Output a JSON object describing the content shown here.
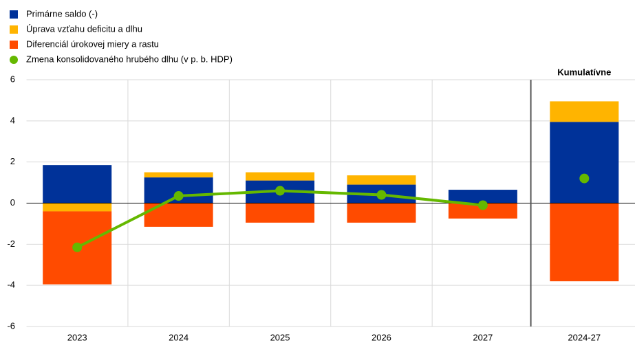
{
  "chart_data": {
    "type": "stacked_bar_line",
    "categories": [
      "2023",
      "2024",
      "2025",
      "2026",
      "2027",
      "2024-27"
    ],
    "annotation": "Kumulatívne",
    "series": [
      {
        "name": "Primárne saldo (-)",
        "color": "#003299",
        "kind": "bar",
        "values": [
          1.85,
          1.25,
          1.1,
          0.9,
          0.65,
          3.95
        ]
      },
      {
        "name": "Úprava vzťahu deficitu a dlhu",
        "color": "#ffb400",
        "kind": "bar",
        "values": [
          -0.4,
          0.25,
          0.4,
          0.45,
          0,
          1.0
        ]
      },
      {
        "name": "Diferenciál úrokovej miery a rastu",
        "color": "#ff4b00",
        "kind": "bar",
        "values": [
          -3.55,
          -1.15,
          -0.95,
          -0.95,
          -0.75,
          -3.8
        ]
      },
      {
        "name": "Zmena konsolidovaného hrubého dlhu (v p. b. HDP)",
        "color": "#65b800",
        "kind": "line",
        "values": [
          -2.15,
          0.35,
          0.6,
          0.4,
          -0.1,
          1.2
        ]
      }
    ],
    "ylim": [
      -6,
      6
    ],
    "yticks": [
      -6,
      -4,
      -2,
      0,
      2,
      4,
      6
    ],
    "grid": true
  }
}
